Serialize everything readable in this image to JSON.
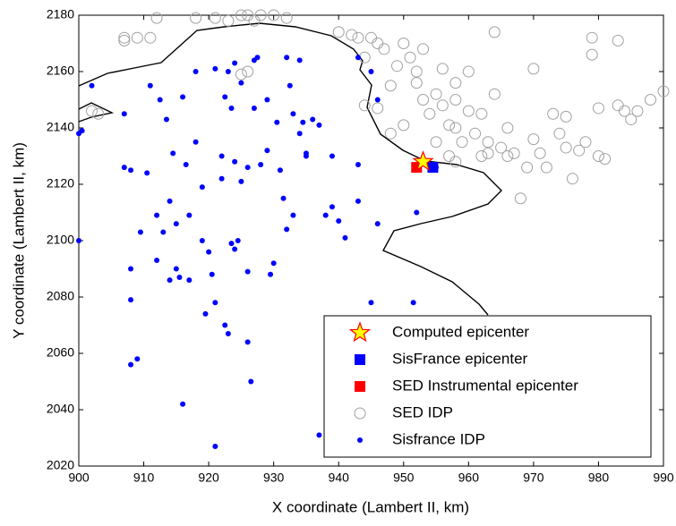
{
  "chart_data": {
    "type": "scatter",
    "xlabel": "X coordinate (Lambert II, km)",
    "ylabel": "Y coordinate (Lambert II, km)",
    "xlim": [
      900,
      990
    ],
    "xticks": [
      900,
      910,
      920,
      930,
      940,
      950,
      960,
      970,
      980,
      990
    ],
    "ylim": [
      2020,
      2180
    ],
    "yticks": [
      2020,
      2040,
      2060,
      2080,
      2100,
      2120,
      2140,
      2160,
      2180
    ],
    "series": [
      {
        "name": "SED IDP",
        "marker": "circle-open",
        "color": "#a0a0a0",
        "x": [
          907,
          907,
          909,
          911,
          903,
          902,
          912,
          918,
          921,
          923,
          925,
          926,
          928,
          927,
          930,
          932,
          925,
          926,
          940,
          942,
          943,
          944,
          945,
          946,
          947,
          948,
          949,
          950,
          951,
          952,
          952,
          953,
          953,
          954,
          955,
          956,
          957,
          958,
          958,
          959,
          960,
          960,
          961,
          962,
          962,
          963,
          964,
          964,
          965,
          966,
          966,
          967,
          968,
          969,
          970,
          970,
          971,
          972,
          973,
          974,
          975,
          975,
          976,
          977,
          978,
          979,
          979,
          980,
          980,
          981,
          983,
          983,
          984,
          985,
          986,
          988,
          990,
          946,
          944,
          948,
          950,
          955,
          957,
          958,
          963,
          956,
          958
        ],
        "values": [
          2171,
          2172,
          2172,
          2172,
          2145,
          2146,
          2179,
          2179,
          2179,
          2178,
          2180,
          2180,
          2180,
          2178,
          2180,
          2179,
          2159,
          2160,
          2174,
          2173,
          2172,
          2165,
          2172,
          2170,
          2168,
          2155,
          2162,
          2170,
          2165,
          2160,
          2156,
          2150,
          2168,
          2145,
          2152,
          2148,
          2141,
          2156,
          2140,
          2135,
          2146,
          2160,
          2138,
          2130,
          2145,
          2135,
          2174,
          2152,
          2133,
          2140,
          2130,
          2131,
          2115,
          2126,
          2136,
          2161,
          2131,
          2126,
          2145,
          2138,
          2144,
          2133,
          2122,
          2132,
          2135,
          2172,
          2166,
          2147,
          2130,
          2129,
          2148,
          2171,
          2146,
          2143,
          2146,
          2150,
          2153,
          2147,
          2148,
          2138,
          2141,
          2135,
          2130,
          2128,
          2131,
          2161,
          2150
        ]
      },
      {
        "name": "Sisfrance IDP",
        "marker": "dot",
        "color": "#0000ff",
        "x": [
          900.5,
          900,
          902,
          900,
          907,
          907,
          908,
          908,
          908,
          908,
          909,
          909.5,
          910.5,
          911,
          912,
          912,
          912.5,
          913,
          913.5,
          914,
          914,
          914.5,
          915,
          915,
          915.5,
          916,
          916,
          916.5,
          917,
          917,
          918,
          918,
          919,
          919,
          919.5,
          920,
          920.5,
          921,
          921,
          921,
          922,
          922,
          922.5,
          922.5,
          923,
          923,
          923.5,
          923.5,
          924,
          924,
          924,
          924.5,
          925,
          925,
          926,
          926,
          926,
          926.5,
          927,
          927,
          927.5,
          928,
          929,
          929,
          929.5,
          930,
          930.5,
          931,
          931.5,
          932,
          932,
          932.5,
          933,
          933,
          934,
          934,
          934.5,
          935,
          935,
          936,
          937,
          937,
          938,
          939,
          939,
          940,
          941,
          943,
          943,
          943,
          945,
          945,
          946,
          946,
          951.5,
          952,
          955
        ],
        "values": [
          2139,
          2138,
          2155,
          2100,
          2145,
          2126,
          2125,
          2090,
          2079,
          2056,
          2058,
          2103,
          2124,
          2155,
          2109,
          2093,
          2150,
          2103,
          2143,
          2114,
          2086,
          2131,
          2106,
          2090,
          2087,
          2151,
          2042,
          2127,
          2109,
          2086,
          2160,
          2135,
          2119,
          2100,
          2074,
          2096,
          2088,
          2078,
          2161,
          2027,
          2130,
          2122,
          2151,
          2070,
          2160,
          2067,
          2147,
          2099,
          2163,
          2128,
          2097,
          2100,
          2121,
          2156,
          2126,
          2089,
          2064,
          2050,
          2164,
          2147,
          2165,
          2127,
          2150,
          2132,
          2088,
          2092,
          2142,
          2125,
          2115,
          2165,
          2104,
          2155,
          2145,
          2109,
          2138,
          2164,
          2142,
          2131,
          2130,
          2143,
          2141,
          2031,
          2109,
          2112,
          2130,
          2107,
          2101,
          2165,
          2127,
          2114,
          2160,
          2078,
          2106,
          2150,
          2078,
          2110,
          2126
        ]
      },
      {
        "name": "SED Instrumental epicenter",
        "marker": "square",
        "color": "#ff0000",
        "x": [
          952
        ],
        "values": [
          2126
        ]
      },
      {
        "name": "SisFrance epicenter",
        "marker": "square",
        "color": "#0000ff",
        "x": [
          954.5
        ],
        "values": [
          2126
        ]
      },
      {
        "name": "Computed epicenter",
        "marker": "star",
        "color": "#ffff00",
        "x": [
          953
        ],
        "values": [
          2128
        ]
      }
    ],
    "legend_order": [
      "Computed epicenter",
      "SisFrance epicenter",
      "SED Instrumental epicenter",
      "SED IDP",
      "Sisfrance IDP"
    ]
  }
}
